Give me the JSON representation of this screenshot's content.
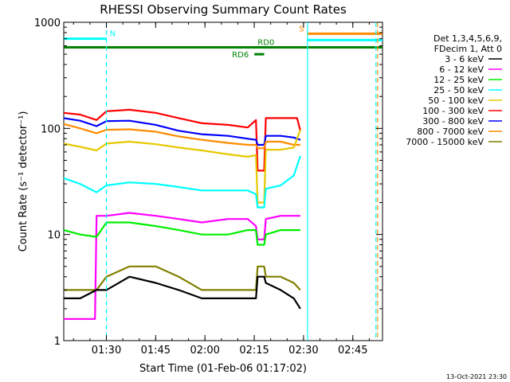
{
  "chart_data": {
    "type": "line",
    "title": "RHESSI Observing Summary Count Rates",
    "xlabel": "Start Time (01-Feb-06 01:17:02)",
    "ylabel": "Count Rate (s⁻¹ detector⁻¹)",
    "yscale": "log",
    "ylim": [
      1,
      1000
    ],
    "xlim_minutes": [
      0,
      97
    ],
    "x_ticks": [
      {
        "label": "01:30",
        "minute": 12.97
      },
      {
        "label": "01:45",
        "minute": 27.97
      },
      {
        "label": "02:00",
        "minute": 42.97
      },
      {
        "label": "02:15",
        "minute": 57.97
      },
      {
        "label": "02:30",
        "minute": 72.97
      },
      {
        "label": "02:45",
        "minute": 87.97
      }
    ],
    "y_ticks": [
      {
        "label": "1",
        "value": 1
      },
      {
        "label": "10",
        "value": 10
      },
      {
        "label": "100",
        "value": 100
      },
      {
        "label": "1000",
        "value": 1000
      }
    ],
    "legend": {
      "position": "top-right",
      "header": [
        "Det 1,3,4,5,6,9,",
        "FDecim 1, Att 0"
      ],
      "entries": [
        {
          "label": "3 - 6 keV",
          "color": "#000000"
        },
        {
          "label": "6 - 12 keV",
          "color": "#ff00ff"
        },
        {
          "label": "12 - 25 keV",
          "color": "#00ee00"
        },
        {
          "label": "25 - 50 keV",
          "color": "#00ffff"
        },
        {
          "label": "50 - 100 keV",
          "color": "#e6c800"
        },
        {
          "label": "100 - 300 keV",
          "color": "#ff0000"
        },
        {
          "label": "300 - 800 keV",
          "color": "#0000ff"
        },
        {
          "label": "800 - 7000 keV",
          "color": "#ff8c00"
        },
        {
          "label": "7000 - 15000 keV",
          "color": "#808000"
        }
      ]
    },
    "series": [
      {
        "name": "100 - 300 keV",
        "color": "#ff0000",
        "x": [
          0,
          5,
          10,
          13,
          20,
          28,
          35,
          42,
          50,
          56,
          58.5,
          59,
          61,
          61.5,
          66,
          71,
          72
        ],
        "y": [
          140,
          135,
          120,
          145,
          150,
          140,
          125,
          112,
          108,
          102,
          120,
          40,
          40,
          125,
          125,
          125,
          95
        ]
      },
      {
        "name": "300 - 800 keV",
        "color": "#0000ff",
        "x": [
          0,
          5,
          10,
          13,
          20,
          28,
          35,
          42,
          50,
          56,
          58.5,
          59,
          61,
          61.5,
          66,
          70,
          72
        ],
        "y": [
          125,
          118,
          105,
          117,
          118,
          108,
          95,
          88,
          85,
          80,
          78,
          70,
          70,
          85,
          85,
          82,
          78
        ]
      },
      {
        "name": "800 - 7000 keV",
        "color": "#ff8c00",
        "x": [
          0,
          5,
          10,
          13,
          20,
          28,
          35,
          42,
          50,
          56,
          58.5,
          59,
          61,
          61.5,
          66,
          70,
          72
        ],
        "y": [
          110,
          100,
          90,
          97,
          98,
          93,
          84,
          78,
          73,
          70,
          70,
          65,
          65,
          75,
          75,
          70,
          70
        ]
      },
      {
        "name": "50 - 100 keV",
        "color": "#e6c800",
        "x": [
          0,
          5,
          10,
          13,
          20,
          28,
          35,
          42,
          50,
          56,
          58.5,
          59,
          61,
          61.5,
          66,
          70,
          72
        ],
        "y": [
          72,
          67,
          62,
          72,
          75,
          71,
          66,
          62,
          57,
          54,
          56,
          20,
          20,
          63,
          63,
          66,
          97
        ]
      },
      {
        "name": "25 - 50 keV",
        "color": "#00ffff",
        "x": [
          0,
          5,
          10,
          13,
          20,
          28,
          35,
          42,
          50,
          56,
          58.5,
          59,
          61,
          61.5,
          66,
          70,
          72
        ],
        "y": [
          34,
          30,
          25,
          29,
          31,
          30,
          28,
          26,
          26,
          26,
          24,
          18,
          18,
          27,
          29,
          36,
          55
        ]
      },
      {
        "name": "6 - 12 keV",
        "color": "#ff00ff",
        "x": [
          0,
          9.5,
          10,
          13,
          20,
          28,
          35,
          42,
          50,
          56,
          58.5,
          59,
          61,
          61.5,
          66,
          70,
          72
        ],
        "y": [
          1.6,
          1.6,
          15,
          15,
          16,
          15,
          14,
          13,
          14,
          14,
          12,
          9,
          9,
          14,
          15,
          15,
          15
        ]
      },
      {
        "name": "12 - 25 keV",
        "color": "#00ee00",
        "x": [
          0,
          5,
          10,
          13,
          20,
          28,
          35,
          42,
          50,
          56,
          58.5,
          59,
          61,
          61.5,
          66,
          70,
          72
        ],
        "y": [
          11,
          10,
          9.5,
          13,
          13,
          12,
          11,
          10,
          10,
          11,
          11,
          8,
          8,
          10,
          11,
          11,
          11
        ]
      },
      {
        "name": "7000 - 15000 keV",
        "color": "#808000",
        "x": [
          0,
          5,
          10,
          13,
          20,
          28,
          35,
          42,
          50,
          56,
          58.5,
          59,
          61,
          61.5,
          66,
          70,
          72
        ],
        "y": [
          3,
          3,
          3,
          4,
          5,
          5,
          4,
          3,
          3,
          3,
          3,
          5,
          5,
          4,
          4,
          3.5,
          3
        ]
      },
      {
        "name": "3 - 6 keV",
        "color": "#000000",
        "x": [
          0,
          5,
          10,
          13,
          20,
          28,
          35,
          42,
          50,
          56,
          58.5,
          59,
          61,
          61.5,
          66,
          70,
          72
        ],
        "y": [
          2.5,
          2.5,
          3,
          3,
          4,
          3.5,
          3,
          2.5,
          2.5,
          2.5,
          2.5,
          4,
          4,
          3.5,
          3,
          2.5,
          2
        ]
      }
    ],
    "flags": [
      {
        "label": "N",
        "color": "#00ffff",
        "x_start": 0,
        "x_end": 13,
        "level": 700
      },
      {
        "label": "S",
        "color": "#ff8c00",
        "x_start": 74,
        "x_end": 97,
        "level": 780
      },
      {
        "label": "",
        "color": "#00ffff",
        "x_start": 74,
        "x_end": 97,
        "level": 680
      },
      {
        "label": "RD0",
        "color": "#008000",
        "x_start": 0,
        "x_end": 97,
        "level": 580
      },
      {
        "label": "RD6",
        "color": "#008000",
        "x_start": 58,
        "x_end": 61,
        "level": 500
      }
    ],
    "vertical_markers": [
      {
        "color": "#00ffff",
        "minute": 13,
        "style": "dashed"
      },
      {
        "color": "#00ffff",
        "minute": 74.2,
        "style": "solid"
      },
      {
        "color": "#00ffff",
        "minute": 95,
        "style": "dashed"
      },
      {
        "color": "#ff8c00",
        "minute": 95.5,
        "style": "dashed"
      }
    ],
    "grid": false
  },
  "footer": {
    "date_stamp": "13-Oct-2021 23:30"
  }
}
